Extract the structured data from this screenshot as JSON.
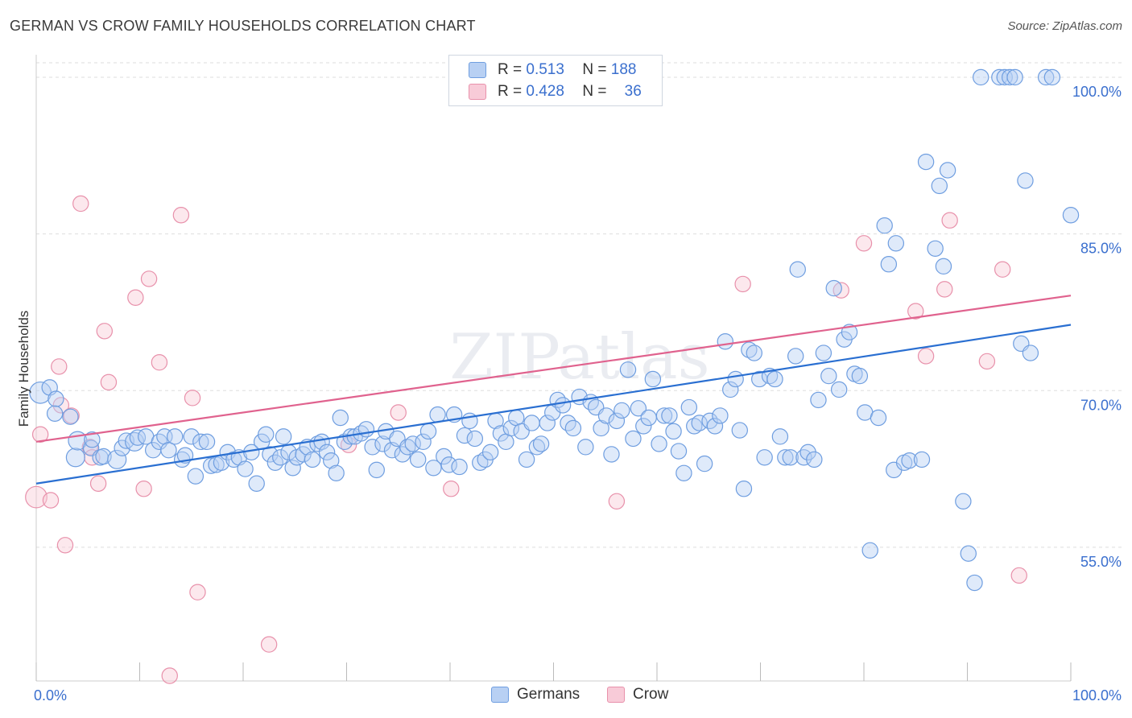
{
  "title": "GERMAN VS CROW FAMILY HOUSEHOLDS CORRELATION CHART",
  "source": "Source: ZipAtlas.com",
  "watermark": "ZIPatlas",
  "legend": {
    "german": {
      "r_label": "R =",
      "r_value": "0.513",
      "n_label": "N =",
      "n_value": "188"
    },
    "crow": {
      "r_label": "R =",
      "r_value": "0.428",
      "n_label": "N =",
      "n_value": "36"
    }
  },
  "colors": {
    "german_fill": "#b8d0f3",
    "german_stroke": "#6f9ee0",
    "german_line": "#2a6fd1",
    "crow_fill": "#f8cbd8",
    "crow_stroke": "#e891ab",
    "crow_line": "#e0628e",
    "axis_text": "#3a6fce",
    "grid": "#dddddd"
  },
  "chart_data": {
    "type": "scatter",
    "title": "GERMAN VS CROW FAMILY HOUSEHOLDS CORRELATION CHART",
    "ylabel": "Family Households",
    "xlabel": "",
    "xlim": [
      0,
      100
    ],
    "ylim": [
      42.2,
      102.0
    ],
    "x_tick_labels": [
      "0.0%",
      "100.0%"
    ],
    "y_ticks": [
      {
        "value": 55,
        "label": "55.0%"
      },
      {
        "value": 70,
        "label": "70.0%"
      },
      {
        "value": 85,
        "label": "85.0%"
      },
      {
        "value": 100,
        "label": "100.0%"
      }
    ],
    "legend_entries": [
      "Germans",
      "Crow"
    ],
    "series": [
      {
        "name": "Germans",
        "trend": {
          "x": [
            0,
            100
          ],
          "y": [
            61.1,
            76.3
          ]
        },
        "points": [
          [
            0.4,
            69.8,
            14
          ],
          [
            1.3,
            70.3,
            10
          ],
          [
            1.9,
            69.2,
            10
          ],
          [
            1.8,
            67.8,
            10
          ],
          [
            3.3,
            67.5,
            10
          ],
          [
            3.8,
            63.6,
            12
          ],
          [
            4.0,
            65.2,
            12
          ],
          [
            5.3,
            64.5,
            10
          ],
          [
            5.4,
            65.3,
            10
          ],
          [
            6.2,
            63.6,
            10
          ],
          [
            6.5,
            63.7,
            10
          ],
          [
            7.8,
            63.4,
            12
          ],
          [
            8.3,
            64.5,
            10
          ],
          [
            8.7,
            65.2,
            10
          ],
          [
            9.5,
            65.1,
            12
          ],
          [
            9.8,
            65.5,
            10
          ],
          [
            10.6,
            65.6,
            10
          ],
          [
            11.3,
            64.3,
            10
          ],
          [
            11.9,
            65.1,
            10
          ],
          [
            12.4,
            65.6,
            10
          ],
          [
            12.8,
            64.3,
            10
          ],
          [
            13.4,
            65.6,
            10
          ],
          [
            14.1,
            63.4,
            10
          ],
          [
            14.4,
            63.8,
            10
          ],
          [
            15.0,
            65.6,
            10
          ],
          [
            15.4,
            61.8,
            10
          ],
          [
            15.9,
            65.1,
            10
          ],
          [
            16.5,
            65.1,
            10
          ],
          [
            16.9,
            62.8,
            10
          ],
          [
            17.4,
            62.9,
            10
          ],
          [
            17.9,
            63.1,
            10
          ],
          [
            18.5,
            64.1,
            10
          ],
          [
            19.1,
            63.4,
            10
          ],
          [
            19.6,
            63.6,
            10
          ],
          [
            20.2,
            62.5,
            10
          ],
          [
            20.8,
            64.1,
            10
          ],
          [
            21.3,
            61.1,
            10
          ],
          [
            21.8,
            65.1,
            10
          ],
          [
            22.2,
            65.8,
            10
          ],
          [
            22.6,
            63.9,
            10
          ],
          [
            23.1,
            63.1,
            10
          ],
          [
            23.6,
            63.6,
            10
          ],
          [
            23.9,
            65.6,
            10
          ],
          [
            24.4,
            64.1,
            10
          ],
          [
            24.8,
            62.6,
            10
          ],
          [
            25.2,
            63.6,
            10
          ],
          [
            25.8,
            63.9,
            10
          ],
          [
            26.2,
            64.6,
            10
          ],
          [
            26.7,
            63.4,
            10
          ],
          [
            27.2,
            64.9,
            10
          ],
          [
            27.6,
            65.1,
            10
          ],
          [
            28.1,
            64.1,
            10
          ],
          [
            28.5,
            63.3,
            10
          ],
          [
            29.0,
            62.1,
            10
          ],
          [
            29.4,
            67.4,
            10
          ],
          [
            29.8,
            65.1,
            10
          ],
          [
            30.4,
            65.6,
            10
          ],
          [
            30.8,
            65.6,
            10
          ],
          [
            31.4,
            65.9,
            10
          ],
          [
            31.9,
            66.3,
            10
          ],
          [
            32.5,
            64.6,
            10
          ],
          [
            32.9,
            62.4,
            10
          ],
          [
            33.5,
            64.9,
            10
          ],
          [
            33.8,
            66.1,
            10
          ],
          [
            34.4,
            64.3,
            10
          ],
          [
            34.9,
            65.4,
            10
          ],
          [
            35.4,
            63.9,
            10
          ],
          [
            35.9,
            64.6,
            10
          ],
          [
            36.4,
            64.9,
            10
          ],
          [
            36.9,
            63.4,
            10
          ],
          [
            37.4,
            65.1,
            10
          ],
          [
            37.9,
            66.1,
            10
          ],
          [
            38.4,
            62.6,
            10
          ],
          [
            38.8,
            67.7,
            10
          ],
          [
            39.4,
            63.7,
            10
          ],
          [
            39.9,
            62.9,
            10
          ],
          [
            40.4,
            67.7,
            10
          ],
          [
            40.9,
            62.7,
            10
          ],
          [
            41.4,
            65.7,
            10
          ],
          [
            41.9,
            67.1,
            10
          ],
          [
            42.4,
            65.4,
            10
          ],
          [
            42.9,
            63.1,
            10
          ],
          [
            43.4,
            63.4,
            10
          ],
          [
            43.9,
            64.1,
            10
          ],
          [
            44.4,
            67.1,
            10
          ],
          [
            44.9,
            65.9,
            10
          ],
          [
            45.4,
            65.1,
            10
          ],
          [
            45.9,
            66.4,
            10
          ],
          [
            46.4,
            67.4,
            10
          ],
          [
            46.9,
            66.1,
            10
          ],
          [
            47.4,
            63.4,
            10
          ],
          [
            47.9,
            66.9,
            10
          ],
          [
            48.4,
            64.6,
            10
          ],
          [
            48.8,
            64.9,
            10
          ],
          [
            49.4,
            66.9,
            10
          ],
          [
            49.9,
            67.9,
            10
          ],
          [
            50.4,
            69.1,
            10
          ],
          [
            50.9,
            68.6,
            10
          ],
          [
            51.4,
            66.9,
            10
          ],
          [
            51.9,
            66.4,
            10
          ],
          [
            52.5,
            69.4,
            10
          ],
          [
            53.1,
            64.6,
            10
          ],
          [
            53.6,
            68.9,
            10
          ],
          [
            54.1,
            68.4,
            10
          ],
          [
            54.6,
            66.4,
            10
          ],
          [
            55.1,
            67.6,
            10
          ],
          [
            55.6,
            63.9,
            10
          ],
          [
            56.1,
            67.1,
            10
          ],
          [
            56.6,
            68.1,
            10
          ],
          [
            57.2,
            72.0,
            10
          ],
          [
            57.7,
            65.4,
            10
          ],
          [
            58.2,
            68.3,
            10
          ],
          [
            58.7,
            66.6,
            10
          ],
          [
            59.2,
            67.4,
            10
          ],
          [
            59.6,
            71.1,
            10
          ],
          [
            60.2,
            64.9,
            10
          ],
          [
            60.7,
            67.6,
            10
          ],
          [
            61.2,
            67.6,
            10
          ],
          [
            61.6,
            66.1,
            10
          ],
          [
            62.1,
            64.2,
            10
          ],
          [
            62.6,
            62.1,
            10
          ],
          [
            63.1,
            68.4,
            10
          ],
          [
            63.6,
            66.6,
            10
          ],
          [
            64.1,
            66.9,
            10
          ],
          [
            64.6,
            63.0,
            10
          ],
          [
            65.1,
            67.1,
            10
          ],
          [
            65.6,
            66.6,
            10
          ],
          [
            66.1,
            67.6,
            10
          ],
          [
            66.6,
            74.7,
            10
          ],
          [
            67.1,
            70.1,
            10
          ],
          [
            67.6,
            71.1,
            10
          ],
          [
            68.0,
            66.2,
            10
          ],
          [
            68.4,
            60.6,
            10
          ],
          [
            68.9,
            73.9,
            10
          ],
          [
            69.4,
            73.6,
            10
          ],
          [
            69.9,
            71.1,
            10
          ],
          [
            70.4,
            63.6,
            10
          ],
          [
            70.9,
            71.4,
            10
          ],
          [
            71.4,
            71.1,
            10
          ],
          [
            71.9,
            65.6,
            10
          ],
          [
            72.4,
            63.6,
            10
          ],
          [
            72.9,
            63.6,
            10
          ],
          [
            73.4,
            73.3,
            10
          ],
          [
            73.6,
            81.6,
            10
          ],
          [
            74.2,
            63.6,
            10
          ],
          [
            74.6,
            64.1,
            10
          ],
          [
            75.2,
            63.4,
            10
          ],
          [
            75.6,
            69.1,
            10
          ],
          [
            76.1,
            73.6,
            10
          ],
          [
            76.6,
            71.4,
            10
          ],
          [
            77.1,
            79.8,
            10
          ],
          [
            77.6,
            70.1,
            10
          ],
          [
            78.1,
            74.9,
            10
          ],
          [
            78.6,
            75.6,
            10
          ],
          [
            79.1,
            71.6,
            10
          ],
          [
            79.6,
            71.4,
            10
          ],
          [
            80.1,
            67.9,
            10
          ],
          [
            80.6,
            54.7,
            10
          ],
          [
            81.4,
            67.4,
            10
          ],
          [
            82.0,
            85.8,
            10
          ],
          [
            82.4,
            82.1,
            10
          ],
          [
            82.9,
            62.4,
            10
          ],
          [
            83.1,
            84.1,
            10
          ],
          [
            83.9,
            63.1,
            10
          ],
          [
            84.4,
            63.3,
            10
          ],
          [
            85.6,
            63.4,
            10
          ],
          [
            86.0,
            91.9,
            10
          ],
          [
            86.9,
            83.6,
            10
          ],
          [
            87.3,
            89.6,
            10
          ],
          [
            87.7,
            81.9,
            10
          ],
          [
            88.1,
            91.1,
            10
          ],
          [
            89.6,
            59.4,
            10
          ],
          [
            90.1,
            54.4,
            10
          ],
          [
            90.7,
            51.6,
            10
          ],
          [
            91.3,
            100.0,
            10
          ],
          [
            93.1,
            100.0,
            10
          ],
          [
            93.6,
            100.0,
            10
          ],
          [
            94.1,
            100.0,
            10
          ],
          [
            94.6,
            100.0,
            10
          ],
          [
            95.2,
            74.5,
            10
          ],
          [
            95.6,
            90.1,
            10
          ],
          [
            96.1,
            73.6,
            10
          ],
          [
            97.6,
            100.0,
            10
          ],
          [
            98.2,
            100.0,
            10
          ],
          [
            100.0,
            86.8,
            10
          ]
        ]
      },
      {
        "name": "Crow",
        "trend": {
          "x": [
            0,
            100
          ],
          "y": [
            65.1,
            79.1
          ]
        },
        "points": [
          [
            0.0,
            59.8,
            14
          ],
          [
            0.4,
            65.8,
            10
          ],
          [
            1.4,
            59.5,
            10
          ],
          [
            2.2,
            72.3,
            10
          ],
          [
            2.4,
            68.6,
            10
          ],
          [
            2.8,
            55.2,
            10
          ],
          [
            3.4,
            67.6,
            10
          ],
          [
            4.3,
            87.9,
            10
          ],
          [
            5.2,
            64.6,
            10
          ],
          [
            5.4,
            63.6,
            10
          ],
          [
            6.0,
            61.1,
            10
          ],
          [
            6.6,
            75.7,
            10
          ],
          [
            7.0,
            70.8,
            10
          ],
          [
            9.6,
            78.9,
            10
          ],
          [
            10.4,
            60.6,
            10
          ],
          [
            10.9,
            80.7,
            10
          ],
          [
            11.9,
            72.7,
            10
          ],
          [
            12.9,
            42.7,
            10
          ],
          [
            14.0,
            86.8,
            10
          ],
          [
            15.1,
            69.3,
            10
          ],
          [
            15.6,
            50.7,
            10
          ],
          [
            22.5,
            45.7,
            10
          ],
          [
            30.2,
            64.8,
            10
          ],
          [
            35.0,
            67.9,
            10
          ],
          [
            40.1,
            60.6,
            10
          ],
          [
            56.1,
            59.4,
            10
          ],
          [
            68.3,
            80.2,
            10
          ],
          [
            77.8,
            79.6,
            10
          ],
          [
            80.0,
            84.1,
            10
          ],
          [
            85.0,
            77.6,
            10
          ],
          [
            86.0,
            73.3,
            10
          ],
          [
            87.8,
            79.7,
            10
          ],
          [
            88.3,
            86.3,
            10
          ],
          [
            91.9,
            72.8,
            10
          ],
          [
            93.4,
            81.6,
            10
          ],
          [
            95.0,
            52.3,
            10
          ]
        ]
      }
    ]
  }
}
